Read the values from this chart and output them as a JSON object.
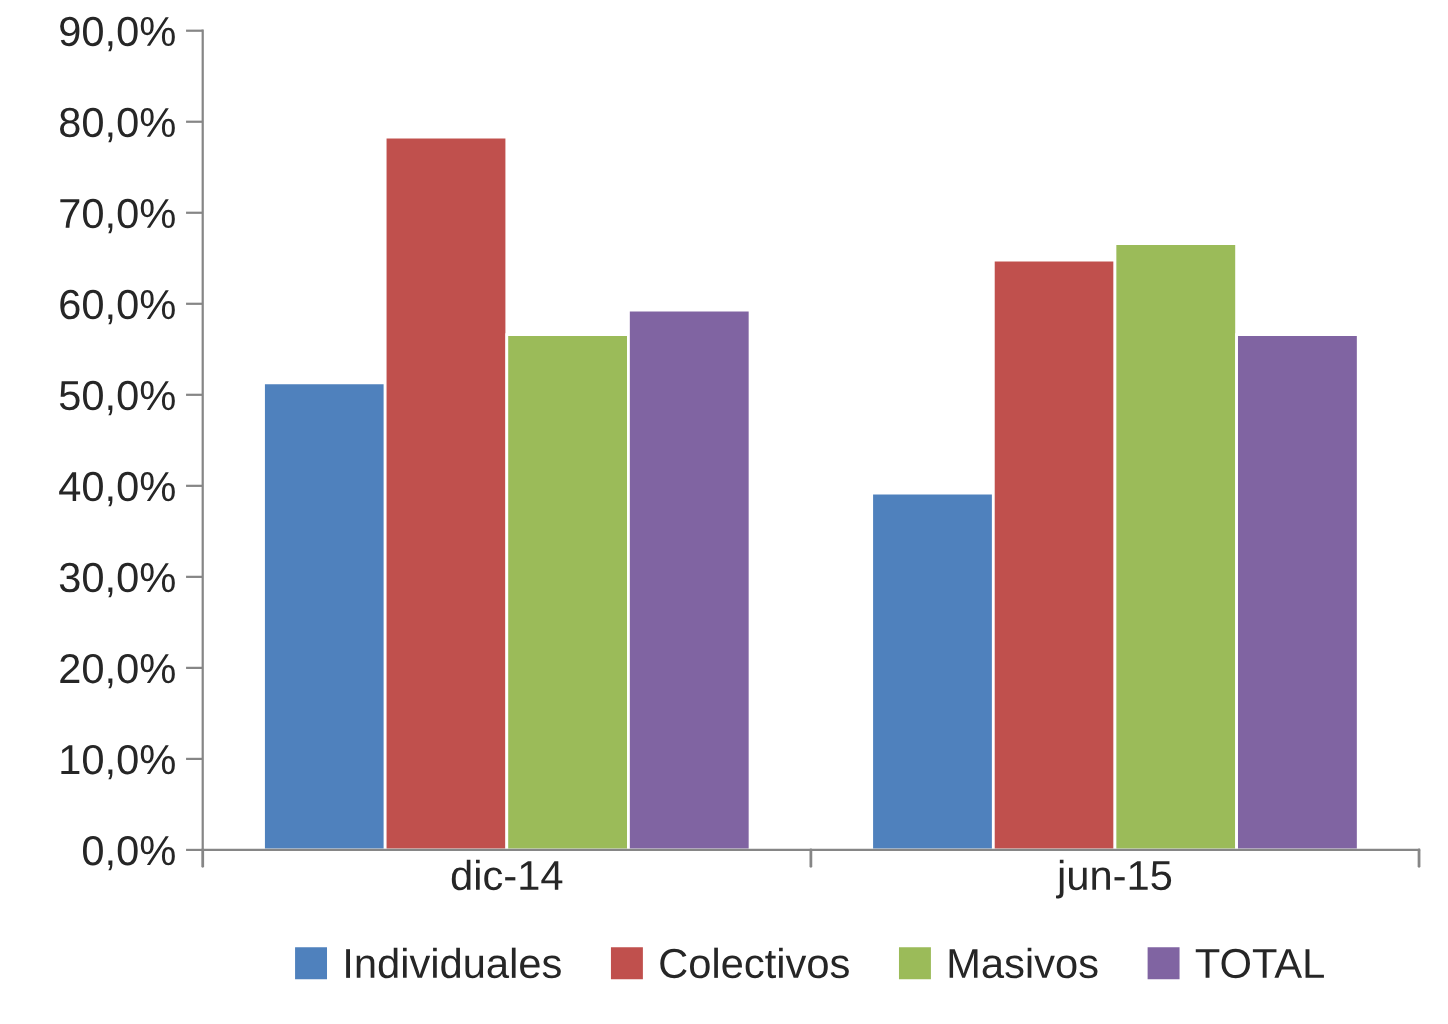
{
  "chart_data": {
    "type": "bar",
    "categories": [
      "dic-14",
      "jun-15"
    ],
    "series": [
      {
        "name": "Individuales",
        "color": "#4f81bd",
        "values": [
          51.3,
          39.2
        ]
      },
      {
        "name": "Colectivos",
        "color": "#c0504d",
        "values": [
          78.3,
          64.8
        ]
      },
      {
        "name": "Masivos",
        "color": "#9bbb59",
        "values": [
          56.6,
          66.6
        ]
      },
      {
        "name": "TOTAL",
        "color": "#8064a2",
        "values": [
          59.3,
          56.6
        ]
      }
    ],
    "ylim": [
      0,
      90
    ],
    "yticks": [
      {
        "value": 0,
        "label": "0,0%"
      },
      {
        "value": 10,
        "label": "10,0%"
      },
      {
        "value": 20,
        "label": "20,0%"
      },
      {
        "value": 30,
        "label": "30,0%"
      },
      {
        "value": 40,
        "label": "40,0%"
      },
      {
        "value": 50,
        "label": "50,0%"
      },
      {
        "value": 60,
        "label": "60,0%"
      },
      {
        "value": 70,
        "label": "70,0%"
      },
      {
        "value": 80,
        "label": "80,0%"
      },
      {
        "value": 90,
        "label": "90,0%"
      }
    ],
    "grid": false,
    "legend": "bottom"
  }
}
